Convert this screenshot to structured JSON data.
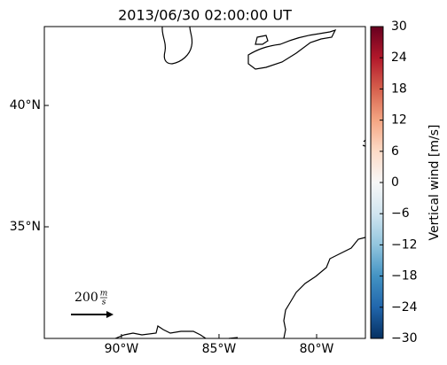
{
  "title": "2013/06/30 02:00:00 UT",
  "map": {
    "xlim": [
      -93.95,
      -77.5
    ],
    "ylim": [
      30.4,
      43.25
    ],
    "xticks": [
      {
        "value": -90,
        "label": "90°W"
      },
      {
        "value": -85,
        "label": "85°W"
      },
      {
        "value": -80,
        "label": "80°W"
      }
    ],
    "yticks": [
      {
        "value": 40,
        "label": "40°N"
      },
      {
        "value": 35,
        "label": "35°N"
      }
    ]
  },
  "quiver_key": {
    "value": "200",
    "unit_top": "m",
    "unit_bottom": "s"
  },
  "colorbar": {
    "label": "Vertical wind [m/s]",
    "lim": [
      -30,
      30
    ],
    "ticks": [
      30,
      24,
      18,
      12,
      6,
      0,
      {
        "value": -6,
        "label": "−6"
      },
      {
        "value": -12,
        "label": "−12"
      },
      {
        "value": -18,
        "label": "−18"
      },
      {
        "value": -24,
        "label": "−24"
      },
      {
        "value": -30,
        "label": "−30"
      }
    ],
    "colors": [
      "#053061",
      "#2166ac",
      "#4393c3",
      "#92c5de",
      "#d1e5f0",
      "#f7f7f7",
      "#fddbc7",
      "#f4a582",
      "#d6604d",
      "#b2182b",
      "#67001f"
    ]
  }
}
